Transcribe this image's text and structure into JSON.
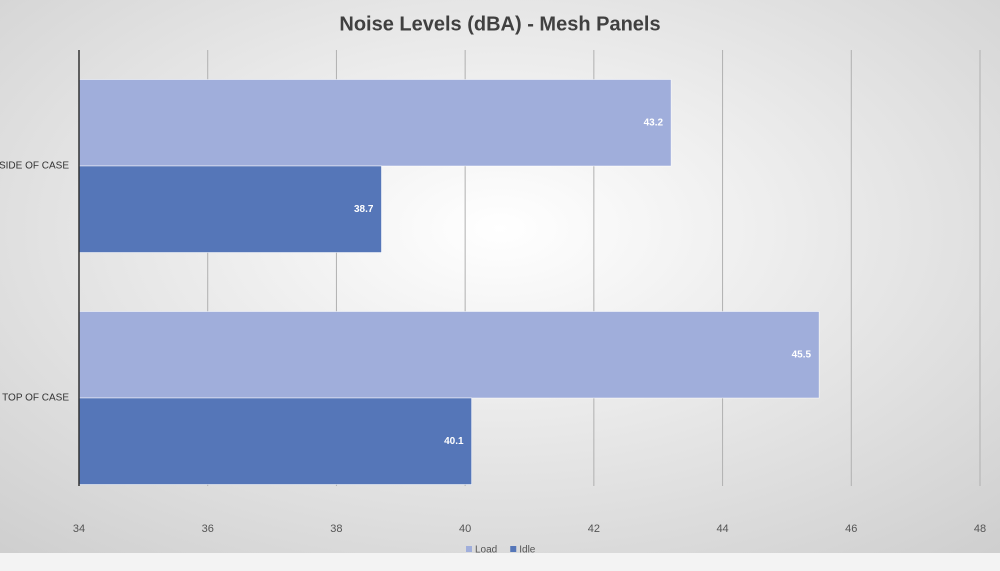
{
  "chart_data": {
    "type": "hbar",
    "title": "Noise Levels (dBA) - Mesh Panels",
    "categories": [
      "SIDE OF CASE",
      "TOP OF CASE"
    ],
    "series": [
      {
        "name": "Load",
        "color": "#a0aedb",
        "values": [
          43.2,
          45.5
        ]
      },
      {
        "name": "Idle",
        "color": "#5576b8",
        "values": [
          38.7,
          40.1
        ]
      }
    ],
    "xlim": [
      34,
      48
    ],
    "xticks": [
      34,
      36,
      38,
      40,
      42,
      44,
      46,
      48
    ],
    "grid": true,
    "legend": "bottom"
  }
}
